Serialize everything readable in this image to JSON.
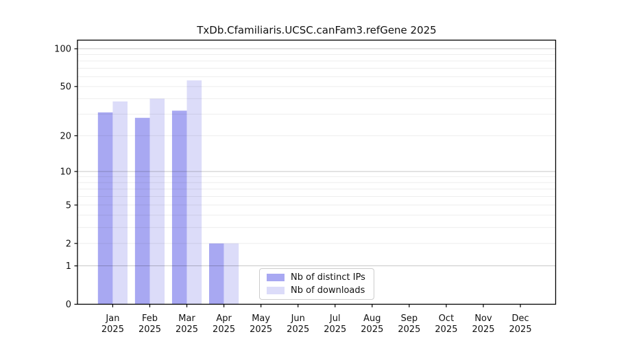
{
  "title": "TxDb.Cfamiliaris.UCSC.canFam3.refGene 2025",
  "chart_data": {
    "type": "bar",
    "title": "TxDb.Cfamiliaris.UCSC.canFam3.refGene 2025",
    "year": "2025",
    "categories": [
      {
        "month": "Jan",
        "year": "2025"
      },
      {
        "month": "Feb",
        "year": "2025"
      },
      {
        "month": "Mar",
        "year": "2025"
      },
      {
        "month": "Apr",
        "year": "2025"
      },
      {
        "month": "May",
        "year": "2025"
      },
      {
        "month": "Jun",
        "year": "2025"
      },
      {
        "month": "Jul",
        "year": "2025"
      },
      {
        "month": "Aug",
        "year": "2025"
      },
      {
        "month": "Sep",
        "year": "2025"
      },
      {
        "month": "Oct",
        "year": "2025"
      },
      {
        "month": "Nov",
        "year": "2025"
      },
      {
        "month": "Dec",
        "year": "2025"
      }
    ],
    "series": [
      {
        "name": "Nb of distinct IPs",
        "color": "#a8a8f2",
        "values": [
          31,
          28,
          32,
          2,
          0,
          0,
          0,
          0,
          0,
          0,
          0,
          0
        ]
      },
      {
        "name": "Nb of downloads",
        "color": "#dcdcf9",
        "values": [
          38,
          40,
          56,
          2,
          0,
          0,
          0,
          0,
          0,
          0,
          0,
          0
        ]
      }
    ],
    "yscale": "log1p",
    "ylim": [
      0,
      117
    ],
    "yticks": [
      0,
      1,
      2,
      5,
      10,
      20,
      50,
      100
    ],
    "grid_major": [
      1,
      10,
      100
    ],
    "grid_minor": [
      2,
      3,
      4,
      5,
      6,
      7,
      8,
      9,
      20,
      30,
      40,
      50,
      60,
      70,
      80,
      90
    ],
    "grid": true,
    "legend_position": "lower-center",
    "xlabel": "",
    "ylabel": ""
  },
  "colors": {
    "axis": "#000000",
    "grid_major": "rgba(0,0,0,0.22)",
    "grid_minor": "rgba(0,0,0,0.07)",
    "text": "#111111"
  }
}
